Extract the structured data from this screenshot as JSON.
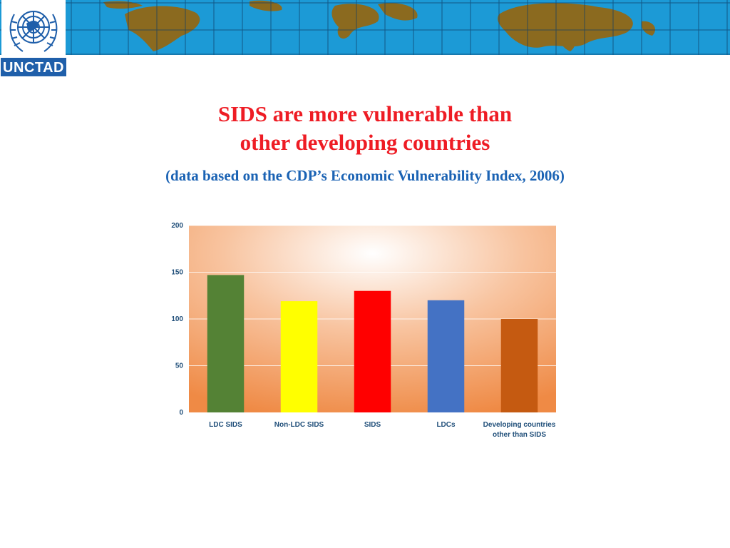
{
  "logo": {
    "label": "UNCTAD"
  },
  "slide": {
    "title_line1": "SIDS are more vulnerable than",
    "title_line2": "other developing countries",
    "subtitle": "(data based on the CDP’s Economic Vulnerability Index, 2006)"
  },
  "colors": {
    "title": "#ee1c24",
    "subtitle": "#1b63b4",
    "axis_text": "#1f4e79"
  },
  "chart_data": {
    "type": "bar",
    "categories": [
      "LDC SIDS",
      "Non-LDC SIDS",
      "SIDS",
      "LDCs",
      "Developing countries other than SIDS"
    ],
    "category_lines": [
      [
        "LDC SIDS"
      ],
      [
        "Non-LDC SIDS"
      ],
      [
        "SIDS"
      ],
      [
        "LDCs"
      ],
      [
        "Developing countries",
        "other than SIDS"
      ]
    ],
    "values": [
      147,
      119,
      130,
      120,
      100
    ],
    "bar_colors": [
      "#548235",
      "#ffff00",
      "#ff0000",
      "#4472c4",
      "#c55a11"
    ],
    "ylim": [
      0,
      200
    ],
    "yticks": [
      0,
      50,
      100,
      150,
      200
    ],
    "title": "",
    "xlabel": "",
    "ylabel": "",
    "grid": true
  }
}
